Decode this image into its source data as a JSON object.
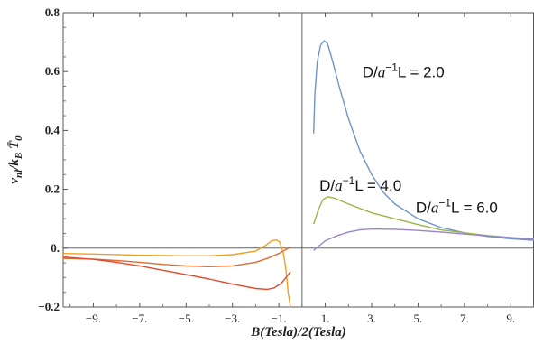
{
  "chart_data": {
    "type": "line",
    "xlabel": "B(Tesla)/2(Tesla)",
    "ylabel": "v_nl/k_B T̄_0",
    "xlim": [
      -10.3,
      10.0
    ],
    "ylim": [
      -0.2,
      0.8
    ],
    "x_ticks": [
      -9,
      -7,
      -5,
      -3,
      -1,
      1,
      3,
      5,
      7,
      9
    ],
    "x_tick_labels": [
      "−9.",
      "−7.",
      "−5.",
      "−3.",
      "−1.",
      "1.",
      "3.",
      "5.",
      "7.",
      "9."
    ],
    "y_ticks": [
      -0.2,
      0.0,
      0.2,
      0.4,
      0.6,
      0.8
    ],
    "y_tick_labels": [
      "−0.2",
      "0.",
      "0.2",
      "0.4",
      "0.6",
      "0.8"
    ],
    "grid": false,
    "annotations": [
      {
        "prefix": "D/",
        "var": "a",
        "sup": "−1",
        "suffix": "L = 2.0",
        "x": 2.6,
        "y": 0.58
      },
      {
        "prefix": "D/",
        "var": "a",
        "sup": "−1",
        "suffix": "L = 4.0",
        "x": 0.75,
        "y": 0.195
      },
      {
        "prefix": "D/",
        "var": "a",
        "sup": "−1",
        "suffix": "L = 6.0",
        "x": 4.9,
        "y": 0.12
      }
    ],
    "series": [
      {
        "color": "#6f95c8",
        "points": [
          [
            0.5,
            0.39
          ],
          [
            0.55,
            0.52
          ],
          [
            0.65,
            0.63
          ],
          [
            0.8,
            0.69
          ],
          [
            0.95,
            0.705
          ],
          [
            1.1,
            0.695
          ],
          [
            1.3,
            0.64
          ],
          [
            1.6,
            0.55
          ],
          [
            2,
            0.44
          ],
          [
            2.5,
            0.33
          ],
          [
            3,
            0.25
          ],
          [
            3.5,
            0.19
          ],
          [
            4,
            0.15
          ],
          [
            5,
            0.1
          ],
          [
            6,
            0.07
          ],
          [
            7,
            0.052
          ],
          [
            8,
            0.04
          ],
          [
            9,
            0.032
          ],
          [
            10,
            0.027
          ]
        ]
      },
      {
        "color": "#9bb547",
        "points": [
          [
            0.5,
            0.082
          ],
          [
            0.7,
            0.13
          ],
          [
            0.9,
            0.165
          ],
          [
            1.1,
            0.175
          ],
          [
            1.4,
            0.17
          ],
          [
            2,
            0.15
          ],
          [
            3,
            0.12
          ],
          [
            4,
            0.1
          ],
          [
            5,
            0.08
          ],
          [
            6,
            0.062
          ],
          [
            7,
            0.052
          ],
          [
            8,
            0.043
          ],
          [
            9,
            0.036
          ],
          [
            10,
            0.03
          ]
        ]
      },
      {
        "color": "#9a86c6",
        "points": [
          [
            0.5,
            -0.008
          ],
          [
            1,
            0.025
          ],
          [
            1.5,
            0.042
          ],
          [
            2,
            0.055
          ],
          [
            2.5,
            0.062
          ],
          [
            3,
            0.065
          ],
          [
            4,
            0.064
          ],
          [
            5,
            0.06
          ],
          [
            6,
            0.055
          ],
          [
            7,
            0.048
          ],
          [
            8,
            0.042
          ],
          [
            9,
            0.036
          ],
          [
            10,
            0.03
          ]
        ]
      },
      {
        "color": "#f0a020",
        "points": [
          [
            -10.3,
            -0.018
          ],
          [
            -9,
            -0.02
          ],
          [
            -8,
            -0.022
          ],
          [
            -7,
            -0.024
          ],
          [
            -6,
            -0.025
          ],
          [
            -5,
            -0.026
          ],
          [
            -4,
            -0.026
          ],
          [
            -3,
            -0.022
          ],
          [
            -2,
            -0.01
          ],
          [
            -1.6,
            0.008
          ],
          [
            -1.3,
            0.025
          ],
          [
            -1.1,
            0.028
          ],
          [
            -0.95,
            0.02
          ],
          [
            -0.8,
            -0.02
          ],
          [
            -0.7,
            -0.07
          ],
          [
            -0.6,
            -0.15
          ],
          [
            -0.5,
            -0.2
          ]
        ]
      },
      {
        "color": "#d96f32",
        "points": [
          [
            -10.3,
            -0.035
          ],
          [
            -9,
            -0.037
          ],
          [
            -8,
            -0.042
          ],
          [
            -7,
            -0.048
          ],
          [
            -6,
            -0.055
          ],
          [
            -5,
            -0.06
          ],
          [
            -4,
            -0.063
          ],
          [
            -3,
            -0.06
          ],
          [
            -2,
            -0.048
          ],
          [
            -1.5,
            -0.035
          ],
          [
            -1,
            -0.018
          ],
          [
            -0.7,
            -0.005
          ],
          [
            -0.5,
            0.003
          ]
        ]
      },
      {
        "color": "#e24a2c",
        "points": [
          [
            -10.3,
            -0.03
          ],
          [
            -9,
            -0.038
          ],
          [
            -8,
            -0.048
          ],
          [
            -7,
            -0.06
          ],
          [
            -6,
            -0.075
          ],
          [
            -5,
            -0.09
          ],
          [
            -4,
            -0.105
          ],
          [
            -3,
            -0.122
          ],
          [
            -2,
            -0.137
          ],
          [
            -1.5,
            -0.14
          ],
          [
            -1.2,
            -0.135
          ],
          [
            -0.9,
            -0.12
          ],
          [
            -0.7,
            -0.1
          ],
          [
            -0.5,
            -0.08
          ]
        ]
      }
    ]
  }
}
